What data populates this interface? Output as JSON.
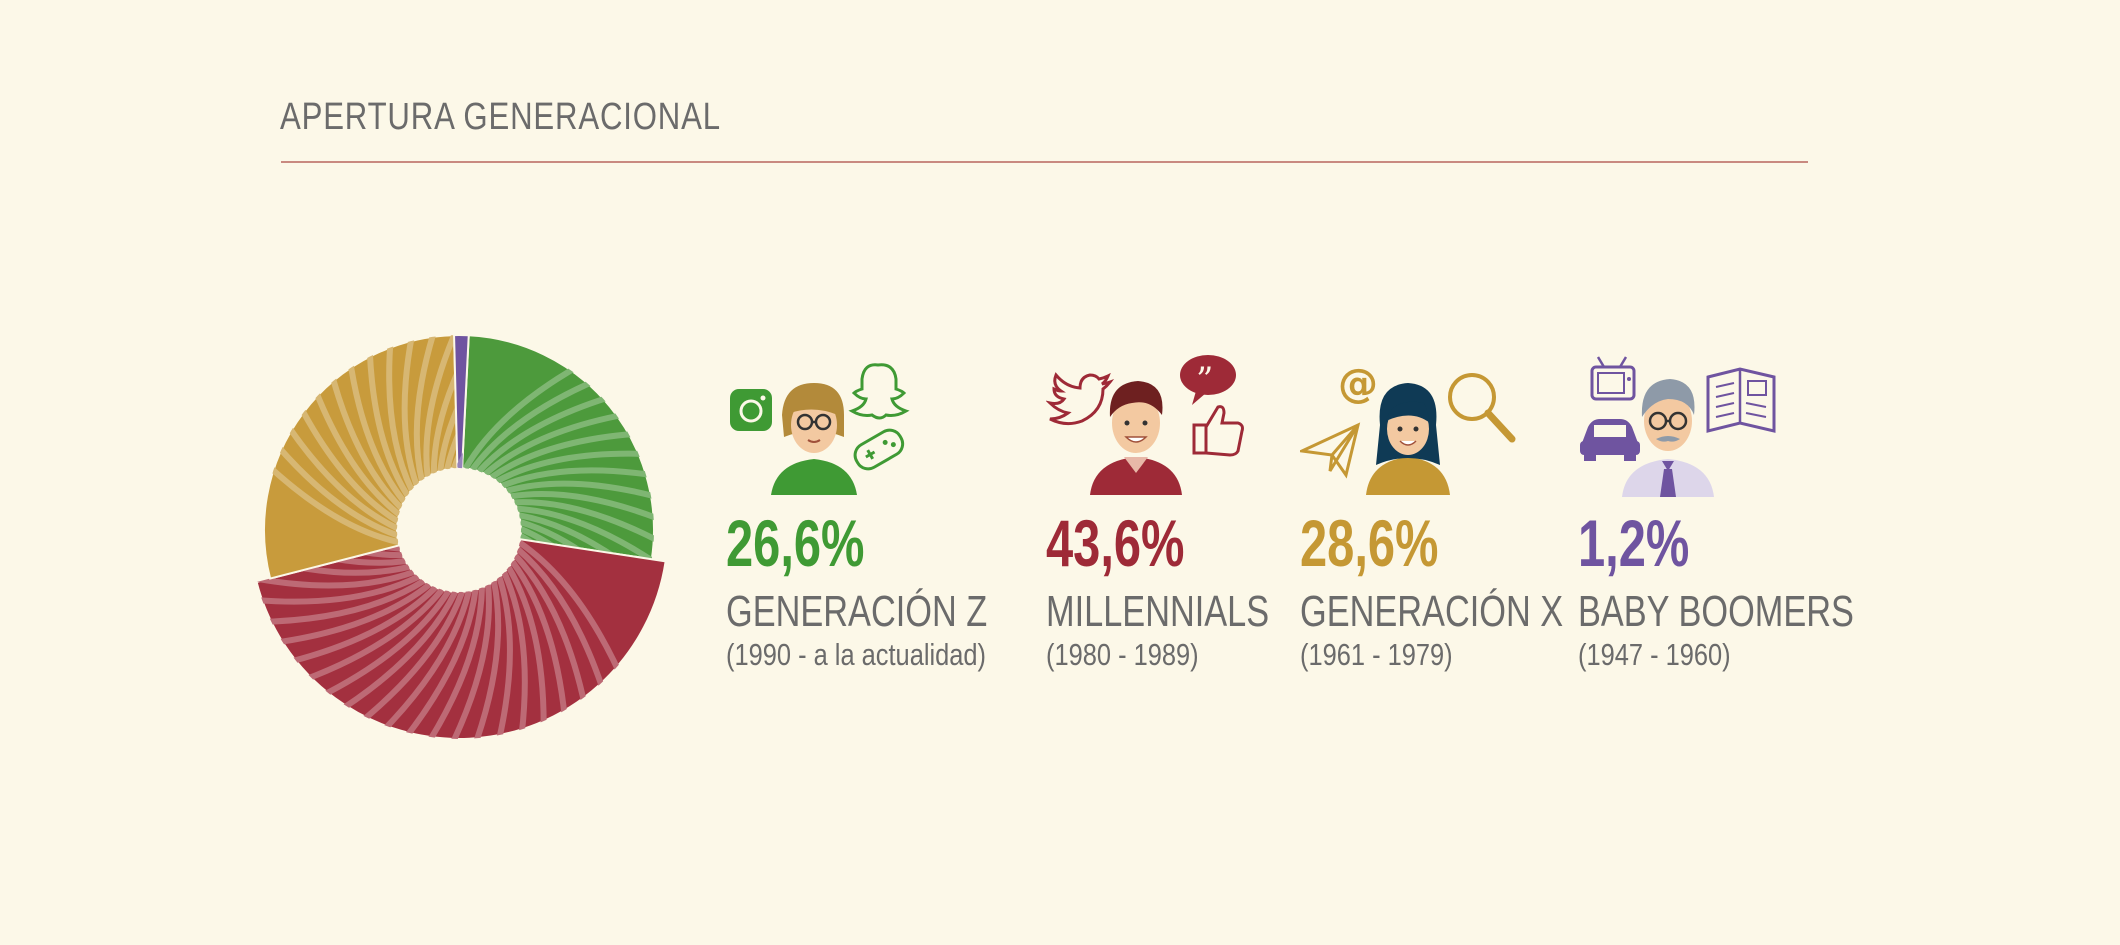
{
  "header": {
    "title": "APERTURA GENERACIONAL"
  },
  "chart_data": {
    "type": "pie",
    "title": "APERTURA GENERACIONAL",
    "categories": [
      "GENERACIÓN Z",
      "MILLENNIALS",
      "GENERACIÓN X",
      "BABY BOOMERS"
    ],
    "values": [
      26.6,
      43.6,
      28.6,
      1.2
    ],
    "colors": [
      "#4d9a3c",
      "#a3303f",
      "#c89b3c",
      "#6f54a0"
    ]
  },
  "generations": [
    {
      "pct": "26,6%",
      "name": "GENERACIÓN Z",
      "years": "(1990 - a la actualidad)",
      "color": "#3f9a34",
      "icons": [
        "instagram-icon",
        "snapchat-icon",
        "gamepad-icon"
      ]
    },
    {
      "pct": "43,6%",
      "name": "MILLENNIALS",
      "years": "(1980 - 1989)",
      "color": "#9e2a37",
      "icons": [
        "twitter-icon",
        "speech-bubble-icon",
        "thumbs-up-icon"
      ]
    },
    {
      "pct": "28,6%",
      "name": "GENERACIÓN X",
      "years": "(1961 - 1979)",
      "color": "#c59834",
      "icons": [
        "at-sign-icon",
        "paper-plane-icon",
        "magnifier-icon"
      ]
    },
    {
      "pct": "1,2%",
      "name": "BABY BOOMERS",
      "years": "(1947 - 1960)",
      "color": "#6f54a0",
      "icons": [
        "tv-icon",
        "car-icon",
        "newspaper-icon"
      ]
    }
  ]
}
